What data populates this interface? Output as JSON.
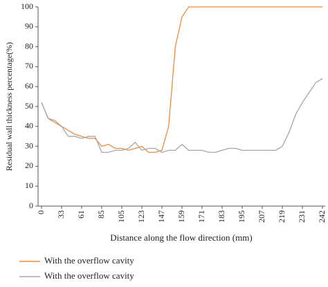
{
  "chart_data": {
    "type": "line",
    "y_label": "Residual wall thickness percentage(%)",
    "x_label": "Distance along the flow direction (mm)",
    "categories": [
      "0",
      null,
      null,
      "33",
      null,
      null,
      "61",
      null,
      null,
      "85",
      null,
      null,
      "105",
      null,
      null,
      "123",
      null,
      null,
      "147",
      null,
      null,
      "159",
      null,
      null,
      "171",
      null,
      null,
      "183",
      null,
      null,
      "195",
      null,
      null,
      "207",
      null,
      null,
      "219",
      null,
      null,
      "231",
      null,
      null,
      "242"
    ],
    "series": [
      {
        "name": "With the overflow cavity",
        "color": "#f08a3c",
        "values": [
          52,
          44,
          42,
          40,
          38,
          36,
          35,
          34,
          34,
          30,
          31,
          29,
          29,
          28,
          29,
          30,
          27,
          27,
          28,
          40,
          80,
          95,
          100,
          100,
          100,
          100,
          100,
          100,
          100,
          100,
          100,
          100,
          100,
          100,
          100,
          100,
          100,
          100,
          100,
          100,
          100,
          100,
          100
        ]
      },
      {
        "name": "With the overflow cavity",
        "color": "#a6a6a6",
        "values": [
          52,
          44,
          43,
          40,
          35,
          35,
          34,
          35,
          35,
          27,
          27,
          28,
          28,
          29,
          32,
          28,
          29,
          29,
          27,
          28,
          28,
          31,
          28,
          28,
          28,
          27,
          27,
          28,
          29,
          29,
          28,
          28,
          28,
          28,
          28,
          28,
          30,
          37,
          46,
          52,
          57,
          62,
          64
        ]
      }
    ],
    "ylim": [
      0,
      100
    ],
    "yticks": [
      0,
      10,
      20,
      30,
      40,
      50,
      60,
      70,
      80,
      90,
      100
    ],
    "grid": false
  }
}
